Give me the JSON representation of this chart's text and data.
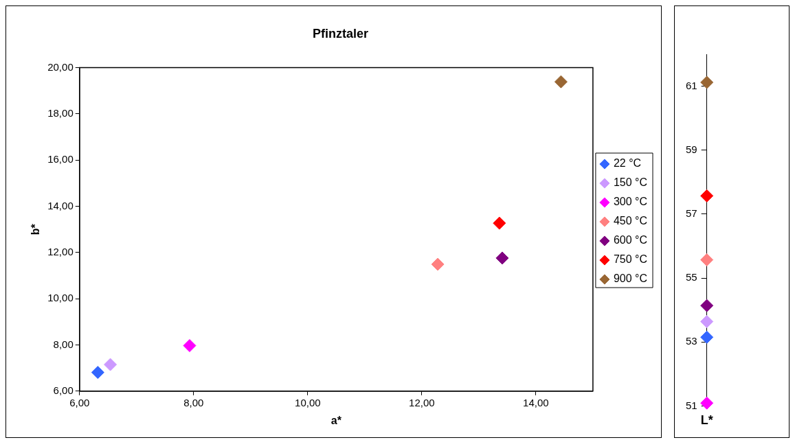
{
  "chart_data": [
    {
      "type": "scatter",
      "title": "Pfinztaler",
      "xlabel": "a*",
      "ylabel": "b*",
      "marker": "diamond",
      "grid": false,
      "legend": "right",
      "xlim": [
        6,
        15
      ],
      "xticks": [
        {
          "value": 6,
          "label": "6,00"
        },
        {
          "value": 8,
          "label": "8,00"
        },
        {
          "value": 10,
          "label": "10,00"
        },
        {
          "value": 12,
          "label": "12,00"
        },
        {
          "value": 14,
          "label": "14,00"
        }
      ],
      "ylim": [
        6,
        20
      ],
      "yticks": [
        {
          "value": 6,
          "label": "6,00"
        },
        {
          "value": 8,
          "label": "8,00"
        },
        {
          "value": 10,
          "label": "10,00"
        },
        {
          "value": 12,
          "label": "12,00"
        },
        {
          "value": 14,
          "label": "14,00"
        },
        {
          "value": 16,
          "label": "16,00"
        },
        {
          "value": 18,
          "label": "18,00"
        },
        {
          "value": 20,
          "label": "20,00"
        }
      ],
      "series": [
        {
          "name": "22 °C",
          "color": "#3366ff",
          "x": [
            6.32
          ],
          "values": [
            6.81
          ]
        },
        {
          "name": "150 °C",
          "color": "#cc99ff",
          "x": [
            6.54
          ],
          "values": [
            7.15
          ]
        },
        {
          "name": "300 °C",
          "color": "#ff00ff",
          "x": [
            7.93
          ],
          "values": [
            7.97
          ]
        },
        {
          "name": "450 °C",
          "color": "#ff8080",
          "x": [
            12.28
          ],
          "values": [
            11.49
          ]
        },
        {
          "name": "600 °C",
          "color": "#800080",
          "x": [
            13.41
          ],
          "values": [
            11.76
          ]
        },
        {
          "name": "750 °C",
          "color": "#ff0000",
          "x": [
            13.36
          ],
          "values": [
            13.27
          ]
        },
        {
          "name": "900 °C",
          "color": "#996633",
          "x": [
            14.44
          ],
          "values": [
            19.39
          ]
        }
      ]
    },
    {
      "type": "scatter",
      "marker": "diamond",
      "grid": false,
      "legend": false,
      "categories": [
        "L*"
      ],
      "ylim": [
        51,
        62
      ],
      "yticks": [
        51,
        53,
        55,
        57,
        59,
        61
      ],
      "series": [
        {
          "color": "#3366ff",
          "values": [
            53.15
          ]
        },
        {
          "color": "#cc99ff",
          "values": [
            53.64
          ]
        },
        {
          "color": "#ff00ff",
          "values": [
            51.09
          ]
        },
        {
          "color": "#ff8080",
          "values": [
            55.57
          ]
        },
        {
          "color": "#800080",
          "values": [
            54.14
          ]
        },
        {
          "color": "#ff0000",
          "values": [
            57.57
          ]
        },
        {
          "color": "#996633",
          "values": [
            61.12
          ]
        }
      ]
    }
  ]
}
